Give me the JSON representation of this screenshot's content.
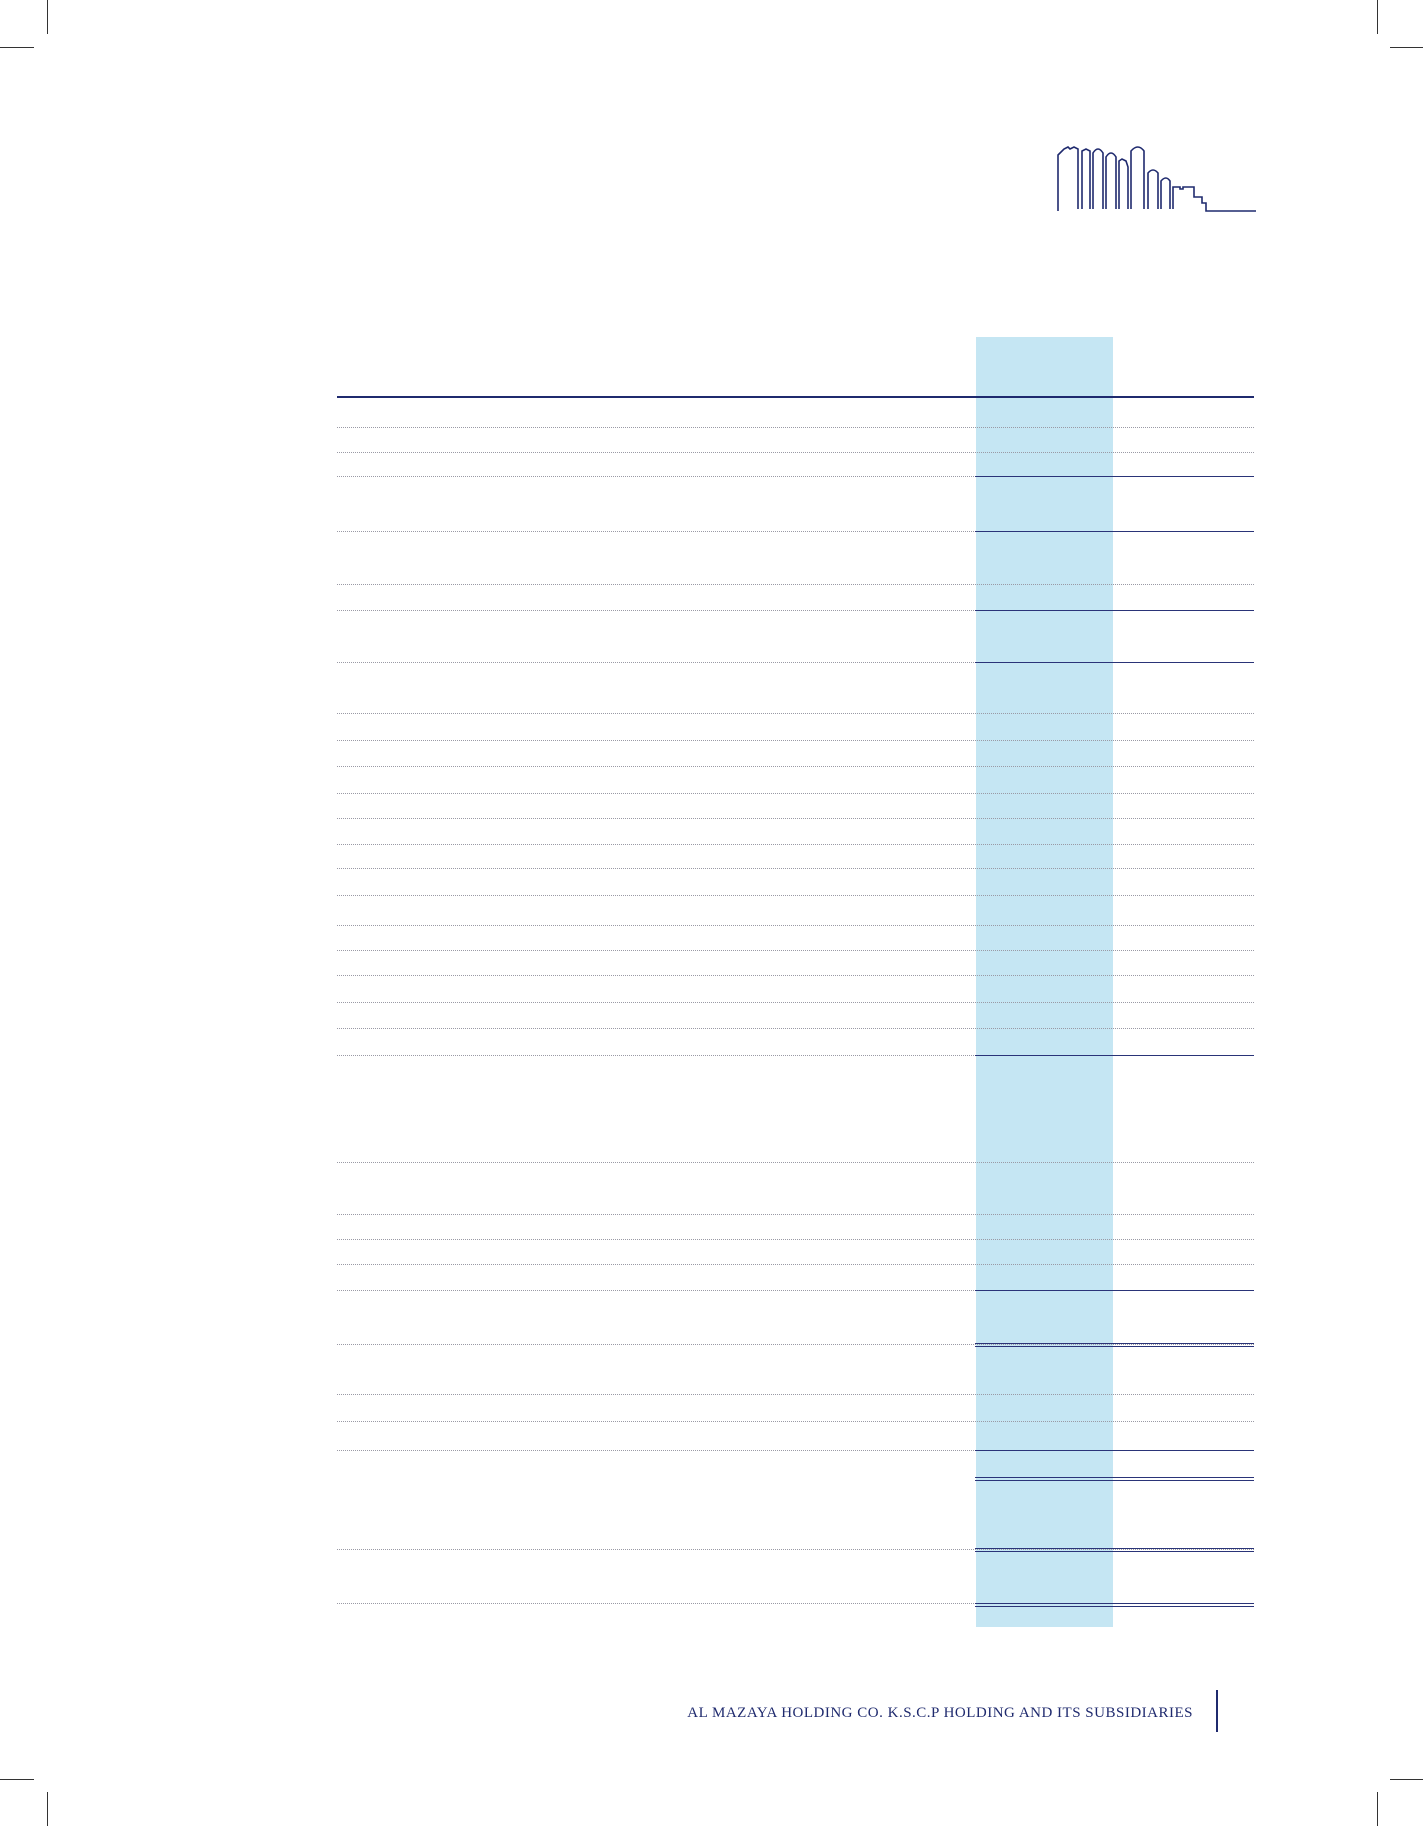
{
  "footer": {
    "company_text": "AL MAZAYA HOLDING CO. K.S.C.P HOLDING AND ITS SUBSIDIARIES"
  },
  "logo": {
    "icon": "city-skyline-icon",
    "color": "#1f2a6e"
  },
  "colors": {
    "highlight_column": "#c5e6f3",
    "rule": "#1f2a6e"
  }
}
